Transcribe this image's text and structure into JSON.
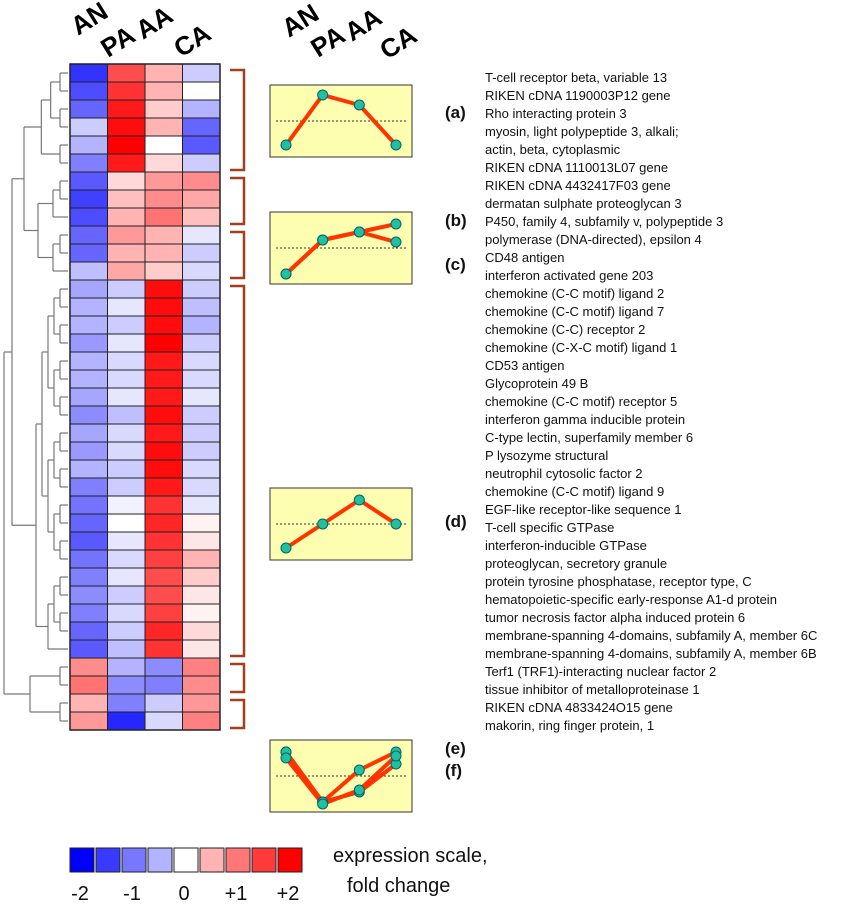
{
  "columns": [
    "AN",
    "PA",
    "AA",
    "CA"
  ],
  "genes": [
    "T-cell receptor beta, variable 13",
    "RIKEN cDNA 1190003P12 gene",
    "Rho interacting protein 3",
    "myosin, light polypeptide 3, alkali;",
    "actin, beta, cytoplasmic",
    "RIKEN cDNA 1110013L07 gene",
    "RIKEN cDNA 4432417F03 gene",
    "dermatan sulphate proteoglycan 3",
    "P450, family 4, subfamily v, polypeptide 3",
    "polymerase (DNA-directed), epsilon 4",
    "CD48 antigen",
    "interferon activated gene 203",
    "chemokine (C-C motif) ligand 2",
    "chemokine (C-C motif) ligand 7",
    "chemokine (C-C) receptor 2",
    "chemokine (C-X-C motif) ligand 1",
    "CD53 antigen",
    "Glycoprotein 49 B",
    "chemokine (C-C motif) receptor 5",
    "interferon gamma inducible protein",
    "C-type lectin, superfamily member 6",
    "P lysozyme structural",
    "neutrophil cytosolic factor 2",
    "chemokine (C-C motif) ligand 9",
    "EGF-like receptor-like sequence 1",
    "T-cell specific GTPase",
    "interferon-inducible GTPase",
    "proteoglycan, secretory granule",
    "protein tyrosine phosphatase, receptor type, C",
    "hematopoietic-specific early-response A1-d protein",
    "tumor necrosis factor alpha induced protein 6",
    "membrane-spanning 4-domains, subfamily A, member 6C",
    "membrane-spanning 4-domains, subfamily A, member 6B",
    "Terf1 (TRF1)-interacting nuclear factor 2",
    "tissue inhibitor of metalloproteinase 1",
    "RIKEN cDNA 4833424O15 gene",
    "makorin, ring finger protein, 1"
  ],
  "heatmap": [
    [
      -1.6,
      1.4,
      0.6,
      -0.4
    ],
    [
      -1.4,
      1.6,
      0.6,
      0.0
    ],
    [
      -1.2,
      1.8,
      0.4,
      -0.6
    ],
    [
      -0.4,
      1.9,
      0.6,
      -1.2
    ],
    [
      -0.6,
      2.0,
      0.0,
      -1.3
    ],
    [
      -1.0,
      1.8,
      0.3,
      -0.4
    ],
    [
      -1.3,
      0.3,
      0.8,
      0.9
    ],
    [
      -1.5,
      0.5,
      0.9,
      0.7
    ],
    [
      -1.4,
      0.6,
      1.1,
      0.5
    ],
    [
      -1.2,
      0.8,
      0.6,
      -0.2
    ],
    [
      -1.2,
      0.6,
      0.6,
      -0.4
    ],
    [
      -0.5,
      0.7,
      0.4,
      -0.3
    ],
    [
      -0.7,
      -0.4,
      1.9,
      -0.4
    ],
    [
      -0.6,
      -0.2,
      1.9,
      -0.5
    ],
    [
      -0.6,
      -0.4,
      1.9,
      -0.6
    ],
    [
      -0.8,
      -0.2,
      2.0,
      -0.4
    ],
    [
      -0.6,
      -0.3,
      1.8,
      -0.3
    ],
    [
      -0.6,
      -0.3,
      1.8,
      -0.3
    ],
    [
      -0.7,
      -0.2,
      1.8,
      -0.2
    ],
    [
      -0.9,
      -0.5,
      1.9,
      -0.4
    ],
    [
      -0.7,
      -0.3,
      1.8,
      -0.4
    ],
    [
      -0.8,
      -0.3,
      1.9,
      -0.4
    ],
    [
      -0.6,
      -0.4,
      1.9,
      -0.3
    ],
    [
      -1.0,
      -0.4,
      1.8,
      -0.3
    ],
    [
      -1.1,
      -0.1,
      1.6,
      -0.2
    ],
    [
      -1.2,
      0.0,
      1.7,
      0.1
    ],
    [
      -1.3,
      -0.2,
      1.6,
      0.2
    ],
    [
      -1.1,
      -0.3,
      1.5,
      0.6
    ],
    [
      -1.0,
      -0.2,
      1.4,
      0.4
    ],
    [
      -0.9,
      -0.4,
      1.4,
      0.2
    ],
    [
      -1.0,
      -0.3,
      1.5,
      0.1
    ],
    [
      -1.2,
      -0.4,
      1.7,
      0.3
    ],
    [
      -1.3,
      -0.5,
      1.6,
      0.2
    ],
    [
      0.9,
      -0.6,
      -0.9,
      1.0
    ],
    [
      1.1,
      -0.9,
      -1.0,
      0.9
    ],
    [
      0.6,
      -1.0,
      -0.4,
      0.8
    ],
    [
      0.8,
      -1.7,
      -0.3,
      1.0
    ]
  ],
  "clusters": [
    {
      "label": "(a)",
      "start": 0,
      "end": 5
    },
    {
      "label": "(b)",
      "start": 6,
      "end": 8
    },
    {
      "label": "(c)",
      "start": 9,
      "end": 11
    },
    {
      "label": "(d)",
      "start": 12,
      "end": 32
    },
    {
      "label": "(e)",
      "start": 33,
      "end": 34
    },
    {
      "label": "(f)",
      "start": 35,
      "end": 36
    }
  ],
  "profiles": [
    {
      "name": "a",
      "series": [
        [
          -1.2,
          1.3,
          0.8,
          -1.2
        ]
      ]
    },
    {
      "name": "bc",
      "series": [
        [
          -1.3,
          0.4,
          0.8,
          1.2
        ],
        [
          -1.3,
          0.4,
          0.8,
          0.3
        ]
      ]
    },
    {
      "name": "d",
      "series": [
        [
          -1.2,
          0.0,
          1.2,
          0.0
        ]
      ]
    },
    {
      "name": "ef",
      "series": [
        [
          1.2,
          -1.3,
          0.3,
          1.2
        ],
        [
          1.2,
          -1.3,
          -0.8,
          0.6
        ],
        [
          0.9,
          -1.4,
          -0.7,
          1.0
        ]
      ]
    }
  ],
  "scale": {
    "title_line1": "expression scale,",
    "title_line2": "fold change",
    "ticks": [
      "-2",
      "-1",
      "0",
      "+1",
      "+2"
    ],
    "colors": [
      "#0000ff",
      "#3a3aff",
      "#7777ff",
      "#b3b3ff",
      "#ffffff",
      "#ffb3b3",
      "#ff7777",
      "#ff3a3a",
      "#ff0000"
    ]
  },
  "colors": {
    "bracket": "#a0401e",
    "panel_fill": "#fefeb0",
    "profile_line": "#ff3300",
    "profile_dot": "#20c0a0",
    "tree": "#777777"
  }
}
